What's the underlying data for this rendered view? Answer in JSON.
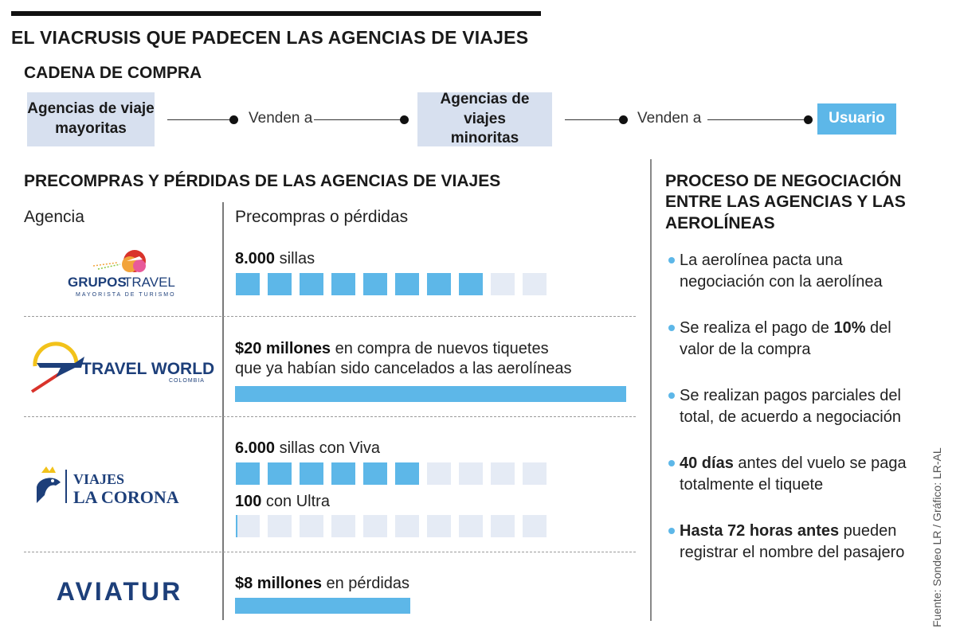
{
  "title": "EL VIACRUSIS QUE PADECEN LAS AGENCIAS DE VIAJES",
  "chain": {
    "title": "CADENA DE COMPRA",
    "box1_line1": "Agencias de viaje",
    "box1_line2": "mayoritas",
    "sell1": "Venden a",
    "box2_line1": "Agencias de viajes",
    "box2_line2": "minoritas",
    "sell2": "Venden a",
    "user": "Usuario"
  },
  "precompras": {
    "title": "PRECOMPRAS Y PÉRDIDAS DE LAS AGENCIAS DE VIAJES",
    "col_agency": "Agencia",
    "col_value": "Precompras o pérdidas",
    "rows": [
      {
        "logo_main": "GRUPOS",
        "logo_main2": "TRAVEL",
        "logo_sub": "MAYORISTA DE TURISMO",
        "value_bold": "8.000",
        "value_text": " sillas",
        "filled": 8,
        "total": 10
      },
      {
        "logo_main": "TRAVEL WORLD",
        "logo_sub": "COLOMBIA",
        "value_bold": "$20 millones",
        "value_text": " en compra de nuevos tiquetes",
        "value_text2": "que ya habían sido cancelados a las aerolíneas",
        "bar_fraction": 1.0
      },
      {
        "logo_main": "VIAJES",
        "logo_main2": "LA CORONA",
        "value_bold": "6.000",
        "value_text": " sillas con Viva",
        "filled": 6,
        "total": 10,
        "value2_bold": "100",
        "value2_text": " con Ultra",
        "filled2": 0.06
      },
      {
        "logo_main": "AVIATUR",
        "value_bold": "$8 millones",
        "value_text": " en pérdidas",
        "bar_fraction": 0.45
      }
    ]
  },
  "negociacion": {
    "title_line1": "PROCESO DE NEGOCIACIÓN",
    "title_line2": "ENTRE LAS AGENCIAS Y LAS",
    "title_line3": "AEROLÍNEAS",
    "b1": "La aerolínea pacta una negociación con la aerolínea",
    "b2_pre": "Se realiza el pago de ",
    "b2_bold": "10%",
    "b2_post": " del valor de la compra",
    "b3": "Se realizan pagos parciales del total, de acuerdo a negociación",
    "b4_bold": "40 días",
    "b4_post": " antes del vuelo se paga totalmente el tiquete",
    "b5_bold": "Hasta 72 horas antes",
    "b5_post": " pueden registrar el nombre del pasajero"
  },
  "source": "Fuente: Sondeo LR / Gráfico: LR-AL",
  "colors": {
    "accent": "#5db7e8",
    "box": "#d7e0ef",
    "empty": "#e5ebf5",
    "navy": "#1d3f7a",
    "red": "#d9332b"
  }
}
